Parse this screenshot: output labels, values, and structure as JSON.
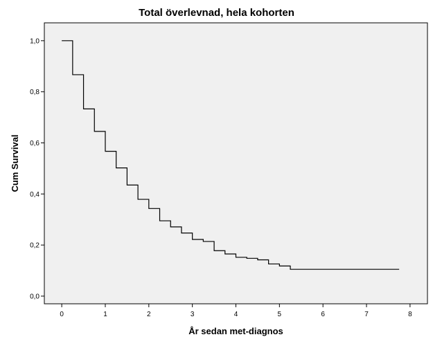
{
  "chart_data": {
    "type": "line",
    "subtype": "step (Kaplan-Meier survival curve)",
    "title": "Total överlevnad, hela kohorten",
    "xlabel": "År sedan met-diagnos",
    "ylabel": "Cum Survival",
    "xlim": [
      -0.4,
      8.4
    ],
    "ylim": [
      -0.03,
      1.07
    ],
    "x_ticks": [
      0,
      1,
      2,
      3,
      4,
      5,
      6,
      7,
      8
    ],
    "x_tick_labels": [
      "0",
      "1",
      "2",
      "3",
      "4",
      "5",
      "6",
      "7",
      "8"
    ],
    "y_ticks": [
      0.0,
      0.2,
      0.4,
      0.6,
      0.8,
      1.0
    ],
    "y_tick_labels": [
      "0,0",
      "0,2",
      "0,4",
      "0,6",
      "0,8",
      "1,0"
    ],
    "grid": false,
    "legend": "none",
    "background_color": "#f0f0f0",
    "line_color": "#000000",
    "series": [
      {
        "x": [
          0,
          0.25,
          0.5,
          0.75,
          1.0,
          1.25,
          1.5,
          1.75,
          2.0,
          2.25,
          2.5,
          2.75,
          3.0,
          3.25,
          3.5,
          3.75,
          4.0,
          4.25,
          4.5,
          4.75,
          5.0,
          5.25,
          7.75
        ],
        "y": [
          1.0,
          0.867,
          0.733,
          0.645,
          0.567,
          0.502,
          0.435,
          0.379,
          0.343,
          0.295,
          0.271,
          0.247,
          0.222,
          0.214,
          0.178,
          0.165,
          0.152,
          0.148,
          0.142,
          0.126,
          0.118,
          0.105,
          0.105
        ]
      }
    ]
  }
}
